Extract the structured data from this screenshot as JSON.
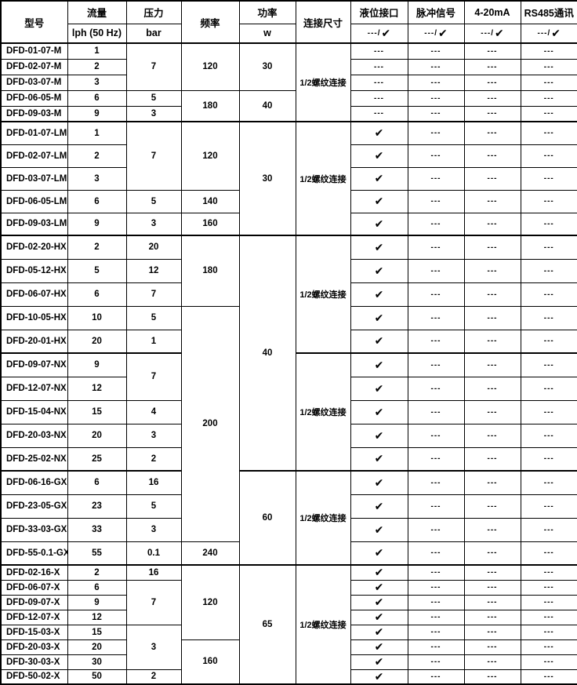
{
  "symbols": {
    "check": "✔",
    "na": "---"
  },
  "table": {
    "columns": [
      {
        "key": "model",
        "title": "型号"
      },
      {
        "key": "flow",
        "title": "流量",
        "sub": "lph (50 Hz)"
      },
      {
        "key": "pressure",
        "title": "压力",
        "sub": "bar"
      },
      {
        "key": "frequency",
        "title": "频率"
      },
      {
        "key": "power",
        "title": "功率",
        "sub": "w"
      },
      {
        "key": "connection",
        "title": "连接尺寸"
      },
      {
        "key": "level-port",
        "title": "液位接口",
        "sub": "---/",
        "sub_check": true
      },
      {
        "key": "pulse-signal",
        "title": "脉冲信号",
        "sub": "---/",
        "sub_check": true
      },
      {
        "key": "4-20ma",
        "title": "4-20mA",
        "sub": "---/",
        "sub_check": true
      },
      {
        "key": "rs485",
        "title": "RS485通讯",
        "sub": "---/",
        "sub_check": true
      }
    ],
    "rows": [
      {
        "g": "M",
        "cells": [
          {
            "t": "DFD-01-07-M"
          },
          {
            "t": "1"
          },
          {
            "t": "7",
            "rs": 3
          },
          {
            "t": "120",
            "rs": 3
          },
          {
            "t": "30",
            "rs": 3
          },
          {
            "t": "1/2螺纹连接",
            "rs": 5
          },
          {
            "t": "---"
          },
          {
            "t": "---"
          },
          {
            "t": "---"
          },
          {
            "t": "---"
          }
        ]
      },
      {
        "g": "M",
        "cells": [
          {
            "t": "DFD-02-07-M"
          },
          {
            "t": "2"
          },
          {
            "t": "---"
          },
          {
            "t": "---"
          },
          {
            "t": "---"
          },
          {
            "t": "---"
          }
        ]
      },
      {
        "g": "M",
        "cells": [
          {
            "t": "DFD-03-07-M"
          },
          {
            "t": "3"
          },
          {
            "t": "---"
          },
          {
            "t": "---"
          },
          {
            "t": "---"
          },
          {
            "t": "---"
          }
        ]
      },
      {
        "g": "M",
        "cells": [
          {
            "t": "DFD-06-05-M"
          },
          {
            "t": "6"
          },
          {
            "t": "5"
          },
          {
            "t": "180",
            "rs": 2
          },
          {
            "t": "40",
            "rs": 2
          },
          {
            "t": "---"
          },
          {
            "t": "---"
          },
          {
            "t": "---"
          },
          {
            "t": "---"
          }
        ]
      },
      {
        "g": "M",
        "cells": [
          {
            "t": "DFD-09-03-M"
          },
          {
            "t": "9"
          },
          {
            "t": "3"
          },
          {
            "t": "---"
          },
          {
            "t": "---"
          },
          {
            "t": "---"
          },
          {
            "t": "---"
          }
        ]
      },
      {
        "g": "LM",
        "cells": [
          {
            "t": "DFD-01-07-LM"
          },
          {
            "t": "1"
          },
          {
            "t": "7",
            "rs": 3
          },
          {
            "t": "120",
            "rs": 3
          },
          {
            "t": "30",
            "rs": 5
          },
          {
            "t": "1/2螺纹连接",
            "rs": 5
          },
          {
            "t": "✔"
          },
          {
            "t": "---"
          },
          {
            "t": "---"
          },
          {
            "t": "---"
          }
        ]
      },
      {
        "g": "LM",
        "cells": [
          {
            "t": "DFD-02-07-LM"
          },
          {
            "t": "2"
          },
          {
            "t": "✔"
          },
          {
            "t": "---"
          },
          {
            "t": "---"
          },
          {
            "t": "---"
          }
        ]
      },
      {
        "g": "LM",
        "cells": [
          {
            "t": "DFD-03-07-LM"
          },
          {
            "t": "3"
          },
          {
            "t": "✔"
          },
          {
            "t": "---"
          },
          {
            "t": "---"
          },
          {
            "t": "---"
          }
        ]
      },
      {
        "g": "LM",
        "cells": [
          {
            "t": "DFD-06-05-LM"
          },
          {
            "t": "6"
          },
          {
            "t": "5"
          },
          {
            "t": "140"
          },
          {
            "t": "✔"
          },
          {
            "t": "---"
          },
          {
            "t": "---"
          },
          {
            "t": "---"
          }
        ]
      },
      {
        "g": "LM",
        "cells": [
          {
            "t": "DFD-09-03-LM"
          },
          {
            "t": "9"
          },
          {
            "t": "3"
          },
          {
            "t": "160"
          },
          {
            "t": "✔"
          },
          {
            "t": "---"
          },
          {
            "t": "---"
          },
          {
            "t": "---"
          }
        ]
      },
      {
        "g": "HX",
        "cells": [
          {
            "t": "DFD-02-20-HX"
          },
          {
            "t": "2"
          },
          {
            "t": "20"
          },
          {
            "t": "180",
            "rs": 3
          },
          {
            "t": "40",
            "rs": 10
          },
          {
            "t": "1/2螺纹连接",
            "rs": 5
          },
          {
            "t": "✔"
          },
          {
            "t": "---"
          },
          {
            "t": "---"
          },
          {
            "t": "---"
          }
        ]
      },
      {
        "g": "HX",
        "cells": [
          {
            "t": "DFD-05-12-HX"
          },
          {
            "t": "5"
          },
          {
            "t": "12"
          },
          {
            "t": "✔"
          },
          {
            "t": "---"
          },
          {
            "t": "---"
          },
          {
            "t": "---"
          }
        ]
      },
      {
        "g": "HX",
        "cells": [
          {
            "t": "DFD-06-07-HX"
          },
          {
            "t": "6"
          },
          {
            "t": "7"
          },
          {
            "t": "✔"
          },
          {
            "t": "---"
          },
          {
            "t": "---"
          },
          {
            "t": "---"
          }
        ]
      },
      {
        "g": "HX",
        "cells": [
          {
            "t": "DFD-10-05-HX"
          },
          {
            "t": "10"
          },
          {
            "t": "5"
          },
          {
            "t": "200",
            "rs": 10
          },
          {
            "t": "✔"
          },
          {
            "t": "---"
          },
          {
            "t": "---"
          },
          {
            "t": "---"
          }
        ]
      },
      {
        "g": "HX",
        "cells": [
          {
            "t": "DFD-20-01-HX"
          },
          {
            "t": "20"
          },
          {
            "t": "1"
          },
          {
            "t": "✔"
          },
          {
            "t": "---"
          },
          {
            "t": "---"
          },
          {
            "t": "---"
          }
        ]
      },
      {
        "g": "NX",
        "cells": [
          {
            "t": "DFD-09-07-NX"
          },
          {
            "t": "9"
          },
          {
            "t": "7",
            "rs": 2
          },
          {
            "t": "1/2螺纹连接",
            "rs": 5
          },
          {
            "t": "✔"
          },
          {
            "t": "---"
          },
          {
            "t": "---"
          },
          {
            "t": "---"
          }
        ]
      },
      {
        "g": "NX",
        "cells": [
          {
            "t": "DFD-12-07-NX"
          },
          {
            "t": "12"
          },
          {
            "t": "✔"
          },
          {
            "t": "---"
          },
          {
            "t": "---"
          },
          {
            "t": "---"
          }
        ]
      },
      {
        "g": "NX",
        "cells": [
          {
            "t": "DFD-15-04-NX"
          },
          {
            "t": "15"
          },
          {
            "t": "4"
          },
          {
            "t": "✔"
          },
          {
            "t": "---"
          },
          {
            "t": "---"
          },
          {
            "t": "---"
          }
        ]
      },
      {
        "g": "NX",
        "cells": [
          {
            "t": "DFD-20-03-NX"
          },
          {
            "t": "20"
          },
          {
            "t": "3"
          },
          {
            "t": "✔"
          },
          {
            "t": "---"
          },
          {
            "t": "---"
          },
          {
            "t": "---"
          }
        ]
      },
      {
        "g": "NX",
        "cells": [
          {
            "t": "DFD-25-02-NX"
          },
          {
            "t": "25"
          },
          {
            "t": "2"
          },
          {
            "t": "✔"
          },
          {
            "t": "---"
          },
          {
            "t": "---"
          },
          {
            "t": "---"
          }
        ]
      },
      {
        "g": "GX",
        "cells": [
          {
            "t": "DFD-06-16-GX"
          },
          {
            "t": "6"
          },
          {
            "t": "16"
          },
          {
            "t": "60",
            "rs": 4
          },
          {
            "t": "1/2螺纹连接",
            "rs": 4
          },
          {
            "t": "✔"
          },
          {
            "t": "---"
          },
          {
            "t": "---"
          },
          {
            "t": "---"
          }
        ]
      },
      {
        "g": "GX",
        "cells": [
          {
            "t": "DFD-23-05-GX"
          },
          {
            "t": "23"
          },
          {
            "t": "5"
          },
          {
            "t": "✔"
          },
          {
            "t": "---"
          },
          {
            "t": "---"
          },
          {
            "t": "---"
          }
        ]
      },
      {
        "g": "GX",
        "cells": [
          {
            "t": "DFD-33-03-GX"
          },
          {
            "t": "33"
          },
          {
            "t": "3"
          },
          {
            "t": "✔"
          },
          {
            "t": "---"
          },
          {
            "t": "---"
          },
          {
            "t": "---"
          }
        ]
      },
      {
        "g": "GX",
        "cells": [
          {
            "t": "DFD-55-0.1-GX"
          },
          {
            "t": "55"
          },
          {
            "t": "0.1"
          },
          {
            "t": "240"
          },
          {
            "t": "✔"
          },
          {
            "t": "---"
          },
          {
            "t": "---"
          },
          {
            "t": "---"
          }
        ]
      },
      {
        "g": "X",
        "cells": [
          {
            "t": "DFD-02-16-X"
          },
          {
            "t": "2"
          },
          {
            "t": "16"
          },
          {
            "t": "120",
            "rs": 5
          },
          {
            "t": "65",
            "rs": 8
          },
          {
            "t": "1/2螺纹连接",
            "rs": 8
          },
          {
            "t": "✔"
          },
          {
            "t": "---"
          },
          {
            "t": "---"
          },
          {
            "t": "---"
          }
        ]
      },
      {
        "g": "X",
        "cells": [
          {
            "t": "DFD-06-07-X"
          },
          {
            "t": "6"
          },
          {
            "t": "7",
            "rs": 3
          },
          {
            "t": "✔"
          },
          {
            "t": "---"
          },
          {
            "t": "---"
          },
          {
            "t": "---"
          }
        ]
      },
      {
        "g": "X",
        "cells": [
          {
            "t": "DFD-09-07-X"
          },
          {
            "t": "9"
          },
          {
            "t": "✔"
          },
          {
            "t": "---"
          },
          {
            "t": "---"
          },
          {
            "t": "---"
          }
        ]
      },
      {
        "g": "X",
        "cells": [
          {
            "t": "DFD-12-07-X"
          },
          {
            "t": "12"
          },
          {
            "t": "✔"
          },
          {
            "t": "---"
          },
          {
            "t": "---"
          },
          {
            "t": "---"
          }
        ]
      },
      {
        "g": "X",
        "cells": [
          {
            "t": "DFD-15-03-X"
          },
          {
            "t": "15"
          },
          {
            "t": "3",
            "rs": 3
          },
          {
            "t": "✔"
          },
          {
            "t": "---"
          },
          {
            "t": "---"
          },
          {
            "t": "---"
          }
        ]
      },
      {
        "g": "X",
        "cells": [
          {
            "t": "DFD-20-03-X"
          },
          {
            "t": "20"
          },
          {
            "t": "160",
            "rs": 3
          },
          {
            "t": "✔"
          },
          {
            "t": "---"
          },
          {
            "t": "---"
          },
          {
            "t": "---"
          }
        ]
      },
      {
        "g": "X",
        "cells": [
          {
            "t": "DFD-30-03-X"
          },
          {
            "t": "30"
          },
          {
            "t": "✔"
          },
          {
            "t": "---"
          },
          {
            "t": "---"
          },
          {
            "t": "---"
          }
        ]
      },
      {
        "g": "X",
        "cells": [
          {
            "t": "DFD-50-02-X"
          },
          {
            "t": "50"
          },
          {
            "t": "2"
          },
          {
            "t": "✔"
          },
          {
            "t": "---"
          },
          {
            "t": "---"
          },
          {
            "t": "---"
          }
        ]
      }
    ]
  }
}
